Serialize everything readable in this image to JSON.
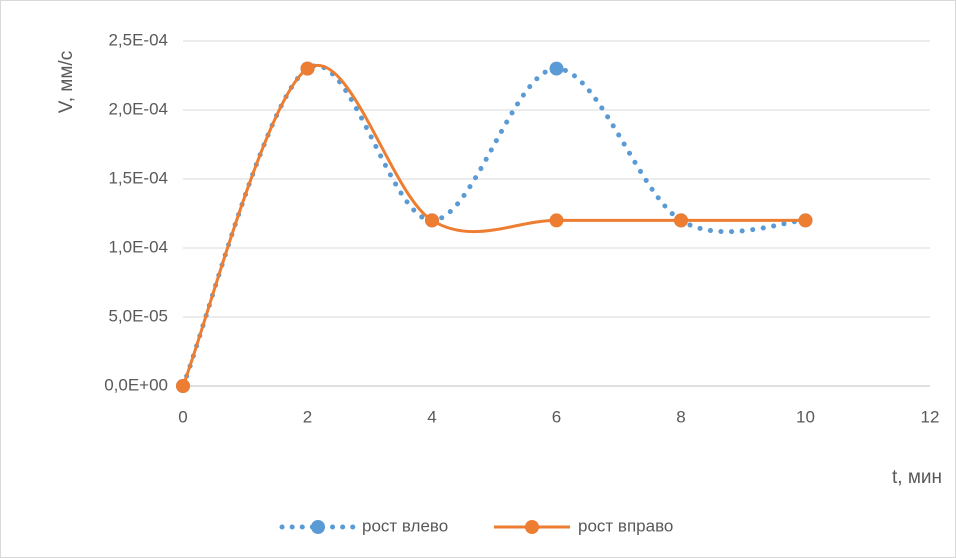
{
  "chart_data": {
    "type": "line",
    "title": "",
    "xlabel": "t, мин",
    "ylabel": "V, мм/с",
    "xlim": [
      0,
      12
    ],
    "ylim": [
      0,
      0.00025
    ],
    "x_ticks": [
      "0",
      "2",
      "4",
      "6",
      "8",
      "10",
      "12"
    ],
    "y_ticks": [
      "0,0E+00",
      "5,0E-05",
      "1,0E-04",
      "1,5E-04",
      "2,0E-04",
      "2,5E-04"
    ],
    "x_tick_values": [
      0,
      2,
      4,
      6,
      8,
      10,
      12
    ],
    "y_tick_values": [
      0,
      5e-05,
      0.0001,
      0.00015,
      0.0002,
      0.00025
    ],
    "grid": "horizontal",
    "legend_position": "bottom",
    "series": [
      {
        "name": "рост влево",
        "style": "dotted-smooth",
        "color": "#5b9bd5",
        "x": [
          0,
          2,
          4,
          6,
          8,
          10
        ],
        "y": [
          0,
          0.00023,
          0.00012,
          0.00023,
          0.00012,
          0.00012
        ]
      },
      {
        "name": "рост вправо",
        "style": "solid-smooth",
        "color": "#ed7d31",
        "x": [
          0,
          2,
          4,
          6,
          8,
          10
        ],
        "y": [
          0,
          0.00023,
          0.00012,
          0.00012,
          0.00012,
          0.00012
        ]
      }
    ]
  }
}
